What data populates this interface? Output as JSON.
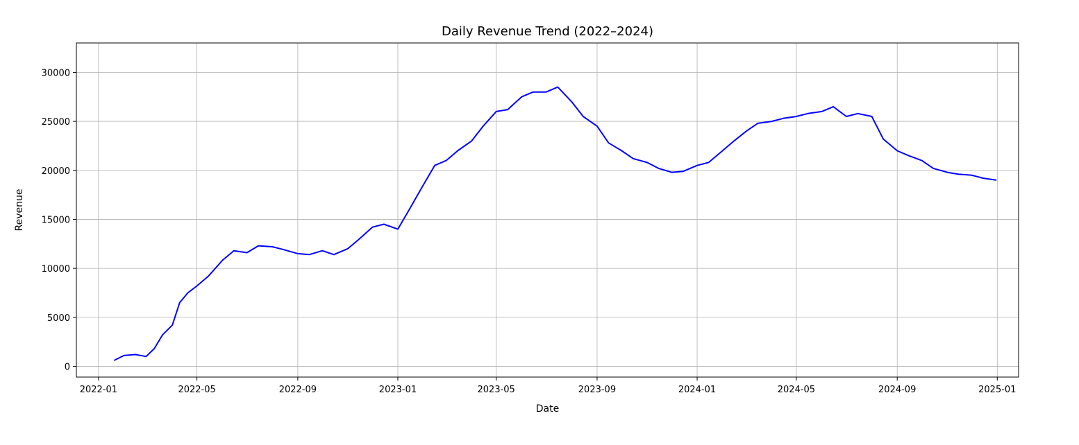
{
  "chart_data": {
    "type": "line",
    "title": "Daily Revenue Trend (2022–2024)",
    "xlabel": "Date",
    "ylabel": "Revenue",
    "grid": true,
    "line_color": "#0000ff",
    "xlim": [
      "2021-12-05",
      "2025-01-27"
    ],
    "ylim": [
      -1100,
      33000
    ],
    "x_ticks": [
      "2022-01",
      "2022-05",
      "2022-09",
      "2023-01",
      "2023-05",
      "2023-09",
      "2024-01",
      "2024-05",
      "2024-09",
      "2025-01"
    ],
    "y_ticks": [
      0,
      5000,
      10000,
      15000,
      20000,
      25000,
      30000
    ],
    "series": [
      {
        "x": [
          "2022-01-20",
          "2022-02-01",
          "2022-02-15",
          "2022-02-28",
          "2022-03-10",
          "2022-03-20",
          "2022-04-01",
          "2022-04-10",
          "2022-04-20",
          "2022-05-01",
          "2022-05-15",
          "2022-06-01",
          "2022-06-15",
          "2022-07-01",
          "2022-07-15",
          "2022-08-01",
          "2022-08-15",
          "2022-09-01",
          "2022-09-15",
          "2022-10-01",
          "2022-10-15",
          "2022-11-01",
          "2022-11-15",
          "2022-12-01",
          "2022-12-15",
          "2023-01-01",
          "2023-01-15",
          "2023-02-01",
          "2023-02-15",
          "2023-03-01",
          "2023-03-15",
          "2023-04-01",
          "2023-04-15",
          "2023-05-01",
          "2023-05-15",
          "2023-06-01",
          "2023-06-15",
          "2023-07-01",
          "2023-07-15",
          "2023-08-01",
          "2023-08-15",
          "2023-09-01",
          "2023-09-15",
          "2023-10-01",
          "2023-10-15",
          "2023-11-01",
          "2023-11-15",
          "2023-12-01",
          "2023-12-15",
          "2024-01-01",
          "2024-01-15",
          "2024-02-01",
          "2024-02-15",
          "2024-03-01",
          "2024-03-15",
          "2024-04-01",
          "2024-04-15",
          "2024-05-01",
          "2024-05-15",
          "2024-06-01",
          "2024-06-15",
          "2024-07-01",
          "2024-07-15",
          "2024-08-01",
          "2024-08-15",
          "2024-09-01",
          "2024-09-15",
          "2024-10-01",
          "2024-10-15",
          "2024-11-01",
          "2024-11-15",
          "2024-12-01",
          "2024-12-15",
          "2024-12-31"
        ],
        "y": [
          600,
          1100,
          1200,
          1000,
          1800,
          3200,
          4200,
          6500,
          7500,
          8200,
          9200,
          10800,
          11800,
          11600,
          12300,
          12200,
          11900,
          11500,
          11400,
          11800,
          11400,
          12000,
          13000,
          14200,
          14500,
          14000,
          16000,
          18500,
          20500,
          21000,
          22000,
          23000,
          24500,
          26000,
          26200,
          27500,
          28000,
          28000,
          28500,
          27000,
          25500,
          24500,
          22800,
          22000,
          21200,
          20800,
          20200,
          19800,
          19900,
          20500,
          20800,
          22000,
          23000,
          24000,
          24800,
          25000,
          25300,
          25500,
          25800,
          26000,
          26500,
          25500,
          25800,
          25500,
          23200,
          22000,
          21500,
          21000,
          20200,
          19800,
          19600,
          19500,
          19200,
          19000
        ]
      }
    ]
  }
}
